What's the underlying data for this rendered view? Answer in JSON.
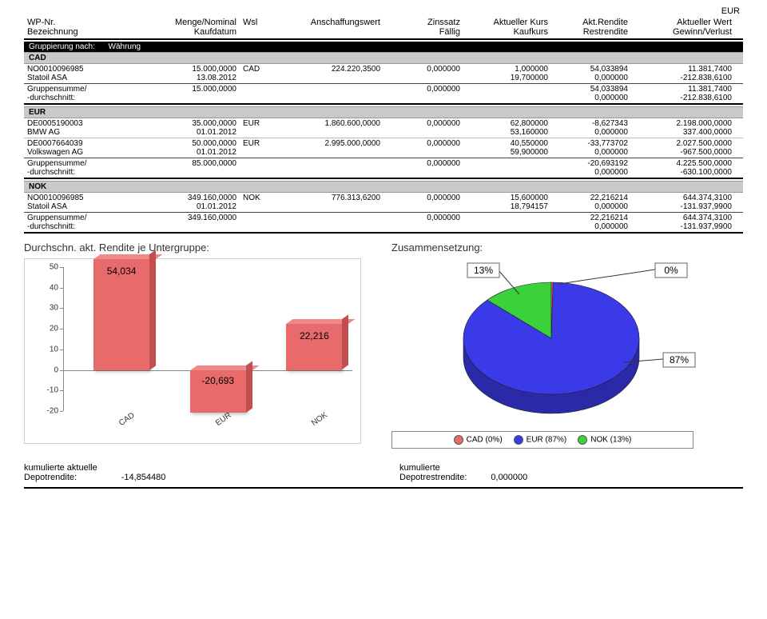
{
  "currency_top": "EUR",
  "header": {
    "c1a": "WP-Nr.",
    "c1b": "Bezeichnung",
    "c2a": "Menge/Nominal",
    "c2b": "Kaufdatum",
    "c3": "Wsl",
    "c4": "Anschaffungswert",
    "c5a": "Zinssatz",
    "c5b": "Fällig",
    "c6a": "Aktueller Kurs",
    "c6b": "Kaufkurs",
    "c7a": "Akt.Rendite",
    "c7b": "Restrendite",
    "c8a": "Aktueller Wert",
    "c8b": "Gewinn/Verlust"
  },
  "grouping_label": "Gruppierung nach:",
  "grouping_value": "Währung",
  "sum_label_a": "Gruppensumme/",
  "sum_label_b": "-durchschnitt:",
  "groups": [
    {
      "code": "CAD",
      "rows": [
        {
          "wp": "NO0010096985",
          "name": "Statoil ASA",
          "menge": "15.000,0000",
          "datum": "13.08.2012",
          "wsl": "CAD",
          "ansch": "224.220,3500",
          "zins": "0,000000",
          "aktkurs": "1,000000",
          "kaufkurs": "19,700000",
          "rend1": "54,033894",
          "rend2": "0,000000",
          "wert": "11.381,7400",
          "gv": "-212.838,6100"
        }
      ],
      "sum": {
        "menge": "15.000,0000",
        "zins": "0,000000",
        "rend1": "54,033894",
        "rend2": "0,000000",
        "wert": "11.381,7400",
        "gv": "-212.838,6100"
      }
    },
    {
      "code": "EUR",
      "rows": [
        {
          "wp": "DE0005190003",
          "name": "BMW AG",
          "menge": "35.000,0000",
          "datum": "01.01.2012",
          "wsl": "EUR",
          "ansch": "1.860.600,0000",
          "zins": "0,000000",
          "aktkurs": "62,800000",
          "kaufkurs": "53,160000",
          "rend1": "-8,627343",
          "rend2": "0,000000",
          "wert": "2.198.000,0000",
          "gv": "337.400,0000"
        },
        {
          "wp": "DE0007664039",
          "name": "Volkswagen AG",
          "menge": "50.000,0000",
          "datum": "01.01.2012",
          "wsl": "EUR",
          "ansch": "2.995.000,0000",
          "zins": "0,000000",
          "aktkurs": "40,550000",
          "kaufkurs": "59,900000",
          "rend1": "-33,773702",
          "rend2": "0,000000",
          "wert": "2.027.500,0000",
          "gv": "-967.500,0000"
        }
      ],
      "sum": {
        "menge": "85.000,0000",
        "zins": "0,000000",
        "rend1": "-20,693192",
        "rend2": "0,000000",
        "wert": "4.225.500,0000",
        "gv": "-630.100,0000"
      }
    },
    {
      "code": "NOK",
      "rows": [
        {
          "wp": "NO0010096985",
          "name": "Statoil ASA",
          "menge": "349.160,0000",
          "datum": "01.01.2012",
          "wsl": "NOK",
          "ansch": "776.313,6200",
          "zins": "0,000000",
          "aktkurs": "15,600000",
          "kaufkurs": "18,794157",
          "rend1": "22,216214",
          "rend2": "0,000000",
          "wert": "644.374,3100",
          "gv": "-131.937,9900"
        }
      ],
      "sum": {
        "menge": "349.160,0000",
        "zins": "0,000000",
        "rend1": "22,216214",
        "rend2": "0,000000",
        "wert": "644.374,3100",
        "gv": "-131.937,9900"
      }
    }
  ],
  "bar_chart": {
    "title": "Durchschn. akt. Rendite je Untergruppe:",
    "type": "bar",
    "ylim": [
      -20,
      50
    ],
    "ytick_step": 10,
    "categories": [
      "CAD",
      "EUR",
      "NOK"
    ],
    "values": [
      54.034,
      -20.693,
      22.216
    ],
    "value_labels": [
      "54,034",
      "-20,693",
      "22,216"
    ],
    "bar_face": "#e86a6a",
    "bar_top": "#f08a8a",
    "bar_side": "#c24f4f",
    "axis_color": "#888888",
    "background": "#ffffff"
  },
  "pie_chart": {
    "title": "Zusammensetzung:",
    "type": "pie",
    "slices": [
      {
        "label": "CAD (0%)",
        "pct": 0,
        "pct_label": "0%",
        "color": "#e86a6a"
      },
      {
        "label": "EUR (87%)",
        "pct": 87,
        "pct_label": "87%",
        "color": "#3a3ae8"
      },
      {
        "label": "NOK (13%)",
        "pct": 13,
        "pct_label": "13%",
        "color": "#3bd13b"
      }
    ],
    "depth_color_eur": "#2a2aa8",
    "background": "#ffffff"
  },
  "footer": {
    "left_label_a": "kumulierte aktuelle",
    "left_label_b": "Depotrendite:",
    "left_value": "-14,854480",
    "right_label_a": "kumulierte",
    "right_label_b": "Depotrestrendite:",
    "right_value": "0,000000"
  }
}
